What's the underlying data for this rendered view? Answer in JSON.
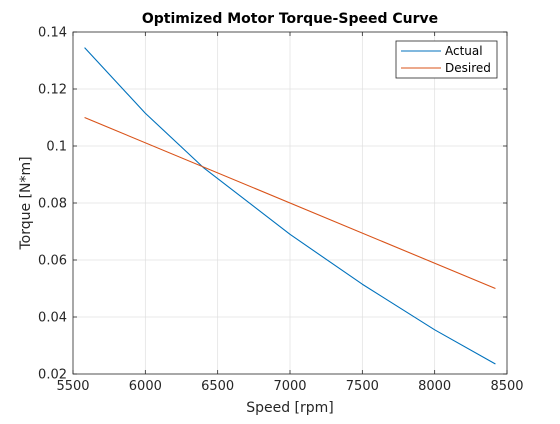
{
  "chart_data": {
    "type": "line",
    "title": "Optimized Motor Torque-Speed Curve",
    "xlabel": "Speed [rpm]",
    "ylabel": "Torque [N*m]",
    "xlim": [
      5500,
      8500
    ],
    "ylim": [
      0.02,
      0.14
    ],
    "xticks": [
      5500,
      6000,
      6500,
      7000,
      7500,
      8000,
      8500
    ],
    "yticks": [
      0.02,
      0.04,
      0.06,
      0.08,
      0.1,
      0.12,
      0.14
    ],
    "xtick_labels": [
      "5500",
      "6000",
      "6500",
      "7000",
      "7500",
      "8000",
      "8500"
    ],
    "ytick_labels": [
      "0.02",
      "0.04",
      "0.06",
      "0.08",
      "0.1",
      "0.12",
      "0.14"
    ],
    "grid": true,
    "legend_position": "top-right",
    "series": [
      {
        "name": "Actual",
        "color": "#0072BD",
        "x": [
          5580,
          6000,
          6400,
          7000,
          7500,
          8000,
          8420
        ],
        "y": [
          0.1345,
          0.1115,
          0.0925,
          0.069,
          0.0515,
          0.0355,
          0.0235
        ]
      },
      {
        "name": "Desired",
        "color": "#D95319",
        "x": [
          5580,
          8420
        ],
        "y": [
          0.11,
          0.05
        ]
      }
    ]
  }
}
